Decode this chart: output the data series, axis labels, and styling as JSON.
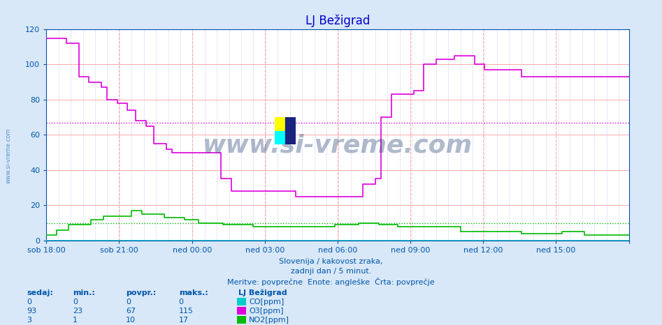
{
  "title": "LJ Bežigrad",
  "title_color": "#0000cc",
  "bg_color": "#d8e8f8",
  "plot_bg_color": "#ffffff",
  "grid_color_major": "#ffaaaa",
  "grid_color_minor": "#ddddff",
  "xlabel_text1": "Slovenija / kakovost zraka,",
  "xlabel_text2": "zadnji dan / 5 minut.",
  "xlabel_text3": "Meritve: povprečne  Enote: angleške  Črta: povprečje",
  "xlabel_color": "#0055aa",
  "ymin": 0,
  "ymax": 120,
  "yticks": [
    0,
    20,
    40,
    60,
    80,
    100,
    120
  ],
  "x_tick_count": 9,
  "x_labels": [
    "sob 18:00",
    "sob 21:00",
    "ned 00:00",
    "ned 03:00",
    "ned 06:00",
    "ned 09:00",
    "ned 12:00",
    "ned 15:00",
    ""
  ],
  "n_points": 288,
  "watermark": "www.si-vreme.com",
  "watermark_color": "#1a3a6a",
  "watermark_alpha": 0.35,
  "avg_O3": 67,
  "avg_NO2": 10,
  "CO_color": "#00cccc",
  "O3_color": "#dd00dd",
  "NO2_color": "#00bb00",
  "legend_header": "LJ Bežigrad",
  "legend_items": [
    {
      "label": "CO[ppm]",
      "color": "#00cccc",
      "sedaj": 0,
      "min": 0,
      "povpr": 0,
      "maks": 0
    },
    {
      "label": "O3[ppm]",
      "color": "#dd00dd",
      "sedaj": 93,
      "min": 23,
      "povpr": 67,
      "maks": 115
    },
    {
      "label": "NO2[ppm]",
      "color": "#00bb00",
      "sedaj": 3,
      "min": 1,
      "povpr": 10,
      "maks": 17
    }
  ],
  "O3_data": [
    115,
    115,
    115,
    115,
    115,
    115,
    115,
    115,
    115,
    115,
    112,
    112,
    112,
    112,
    112,
    112,
    93,
    93,
    93,
    93,
    93,
    90,
    90,
    90,
    90,
    90,
    90,
    87,
    87,
    87,
    80,
    80,
    80,
    80,
    80,
    78,
    78,
    78,
    78,
    78,
    74,
    74,
    74,
    74,
    68,
    68,
    68,
    68,
    68,
    65,
    65,
    65,
    65,
    55,
    55,
    55,
    55,
    55,
    55,
    52,
    52,
    52,
    50,
    50,
    50,
    50,
    50,
    50,
    50,
    50,
    50,
    50,
    50,
    50,
    50,
    50,
    50,
    50,
    50,
    50,
    50,
    50,
    50,
    50,
    50,
    50,
    35,
    35,
    35,
    35,
    35,
    28,
    28,
    28,
    28,
    28,
    28,
    28,
    28,
    28,
    28,
    28,
    28,
    28,
    28,
    28,
    28,
    28,
    28,
    28,
    28,
    28,
    28,
    28,
    28,
    28,
    28,
    28,
    28,
    28,
    28,
    28,
    28,
    25,
    25,
    25,
    25,
    25,
    25,
    25,
    25,
    25,
    25,
    25,
    25,
    25,
    25,
    25,
    25,
    25,
    25,
    25,
    25,
    25,
    25,
    25,
    25,
    25,
    25,
    25,
    25,
    25,
    25,
    25,
    25,
    25,
    32,
    32,
    32,
    32,
    32,
    32,
    35,
    35,
    35,
    70,
    70,
    70,
    70,
    70,
    83,
    83,
    83,
    83,
    83,
    83,
    83,
    83,
    83,
    83,
    83,
    85,
    85,
    85,
    85,
    85,
    100,
    100,
    100,
    100,
    100,
    100,
    103,
    103,
    103,
    103,
    103,
    103,
    103,
    103,
    103,
    105,
    105,
    105,
    105,
    105,
    105,
    105,
    105,
    105,
    105,
    100,
    100,
    100,
    100,
    100,
    97,
    97,
    97,
    97,
    97,
    97,
    97,
    97,
    97,
    97,
    97,
    97,
    97,
    97,
    97,
    97,
    97,
    97,
    93,
    93
  ],
  "NO2_data": [
    3,
    3,
    3,
    3,
    3,
    6,
    6,
    6,
    6,
    6,
    6,
    9,
    9,
    9,
    9,
    9,
    9,
    9,
    9,
    9,
    9,
    9,
    12,
    12,
    12,
    12,
    12,
    12,
    14,
    14,
    14,
    14,
    14,
    14,
    14,
    14,
    14,
    14,
    14,
    14,
    14,
    14,
    17,
    17,
    17,
    17,
    17,
    15,
    15,
    15,
    15,
    15,
    15,
    15,
    15,
    15,
    15,
    15,
    13,
    13,
    13,
    13,
    13,
    13,
    13,
    13,
    13,
    13,
    12,
    12,
    12,
    12,
    12,
    12,
    12,
    10,
    10,
    10,
    10,
    10,
    10,
    10,
    10,
    10,
    10,
    10,
    10,
    9,
    9,
    9,
    9,
    9,
    9,
    9,
    9,
    9,
    9,
    9,
    9,
    9,
    9,
    9,
    8,
    8,
    8,
    8,
    8,
    8,
    8,
    8,
    8,
    8,
    8,
    8,
    8,
    8,
    8,
    8,
    8,
    8,
    8,
    8,
    8,
    8,
    8,
    8,
    8,
    8,
    8,
    8,
    8,
    8,
    8,
    8,
    8,
    8,
    8,
    8,
    8,
    8,
    8,
    8,
    9,
    9,
    9,
    9,
    9,
    9,
    9,
    9,
    9,
    9,
    9,
    9,
    10,
    10,
    10,
    10,
    10,
    10,
    10,
    10,
    10,
    10,
    9,
    9,
    9,
    9,
    9,
    9,
    9,
    9,
    9,
    8,
    8,
    8,
    8,
    8,
    8,
    8,
    8,
    8,
    8,
    8,
    8,
    8,
    8,
    8,
    8,
    8,
    8,
    8,
    8,
    8,
    8,
    8,
    8,
    8,
    8,
    8,
    8,
    8,
    8,
    8,
    5,
    5,
    5,
    5,
    5,
    5,
    5,
    5,
    5,
    5,
    5,
    5,
    5,
    5,
    5,
    5,
    5,
    5,
    5,
    5,
    5,
    5,
    5,
    5,
    5,
    5,
    5,
    5,
    5,
    5,
    4,
    4,
    4,
    4,
    4,
    4,
    4,
    4,
    4,
    4,
    4,
    4,
    4,
    4,
    4,
    4,
    4,
    4,
    4,
    4,
    5,
    5,
    5,
    5,
    5,
    5,
    5,
    5,
    5,
    5,
    5,
    3
  ]
}
